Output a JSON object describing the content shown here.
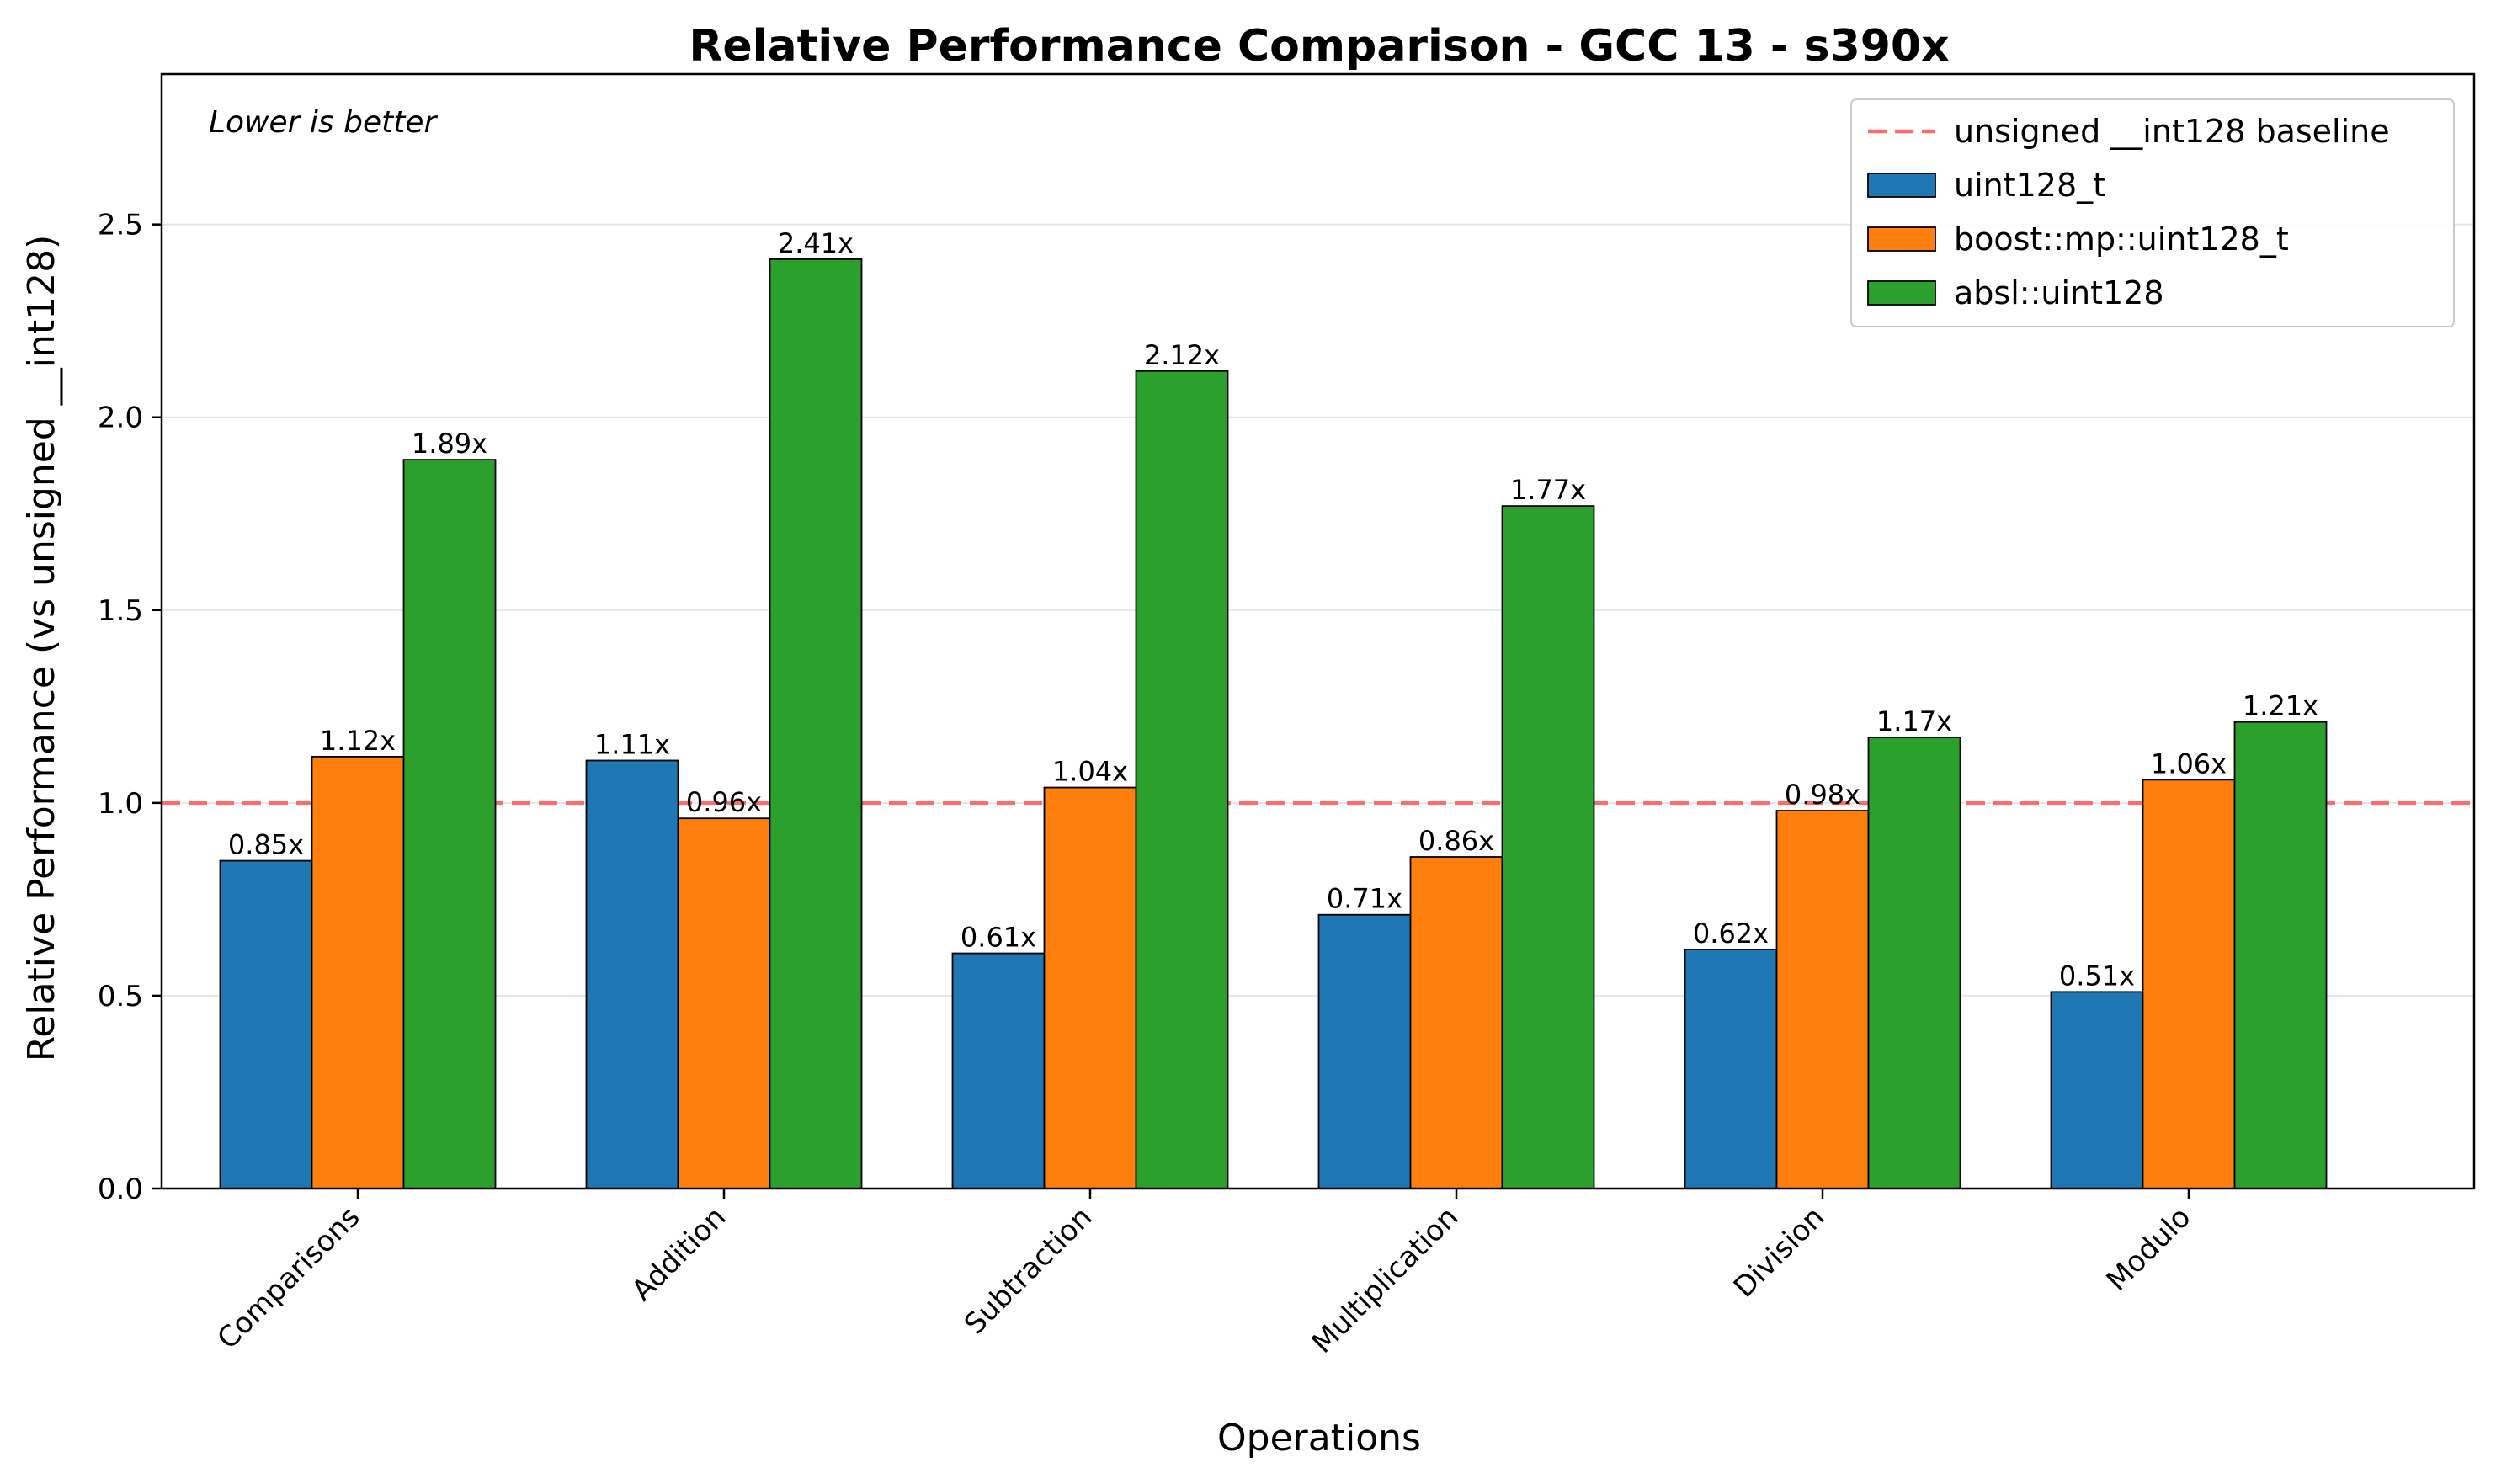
{
  "chart_data": {
    "type": "bar",
    "title": "Relative Performance Comparison - GCC 13 - s390x",
    "xlabel": "Operations",
    "ylabel": "Relative Performance (vs unsigned __int128)",
    "annotation": "Lower is better",
    "categories": [
      "Comparisons",
      "Addition",
      "Subtraction",
      "Multiplication",
      "Division",
      "Modulo"
    ],
    "series": [
      {
        "name": "uint128_t",
        "color": "#1f77b4",
        "values": [
          0.85,
          1.11,
          0.61,
          0.71,
          0.62,
          0.51
        ],
        "labels": [
          "0.85x",
          "1.11x",
          "0.61x",
          "0.71x",
          "0.62x",
          "0.51x"
        ]
      },
      {
        "name": "boost::mp::uint128_t",
        "color": "#ff7f0e",
        "values": [
          1.12,
          0.96,
          1.04,
          0.86,
          0.98,
          1.06
        ],
        "labels": [
          "1.12x",
          "0.96x",
          "1.04x",
          "0.86x",
          "0.98x",
          "1.06x"
        ]
      },
      {
        "name": "absl::uint128",
        "color": "#2ca02c",
        "values": [
          1.89,
          2.41,
          2.12,
          1.77,
          1.17,
          1.21
        ],
        "labels": [
          "1.89x",
          "2.41x",
          "2.12x",
          "1.77x",
          "1.17x",
          "1.21x"
        ]
      }
    ],
    "baseline": {
      "name": "unsigned __int128 baseline",
      "value": 1.0,
      "color": "#ff6b6b",
      "style": "dashed"
    },
    "ylim": [
      0,
      2.89
    ],
    "yticks": [
      0.0,
      0.5,
      1.0,
      1.5,
      2.0,
      2.5
    ],
    "ytick_labels": [
      "0.0",
      "0.5",
      "1.0",
      "1.5",
      "2.0",
      "2.5"
    ],
    "grid": "horizontal",
    "legend_position": "top-right"
  }
}
